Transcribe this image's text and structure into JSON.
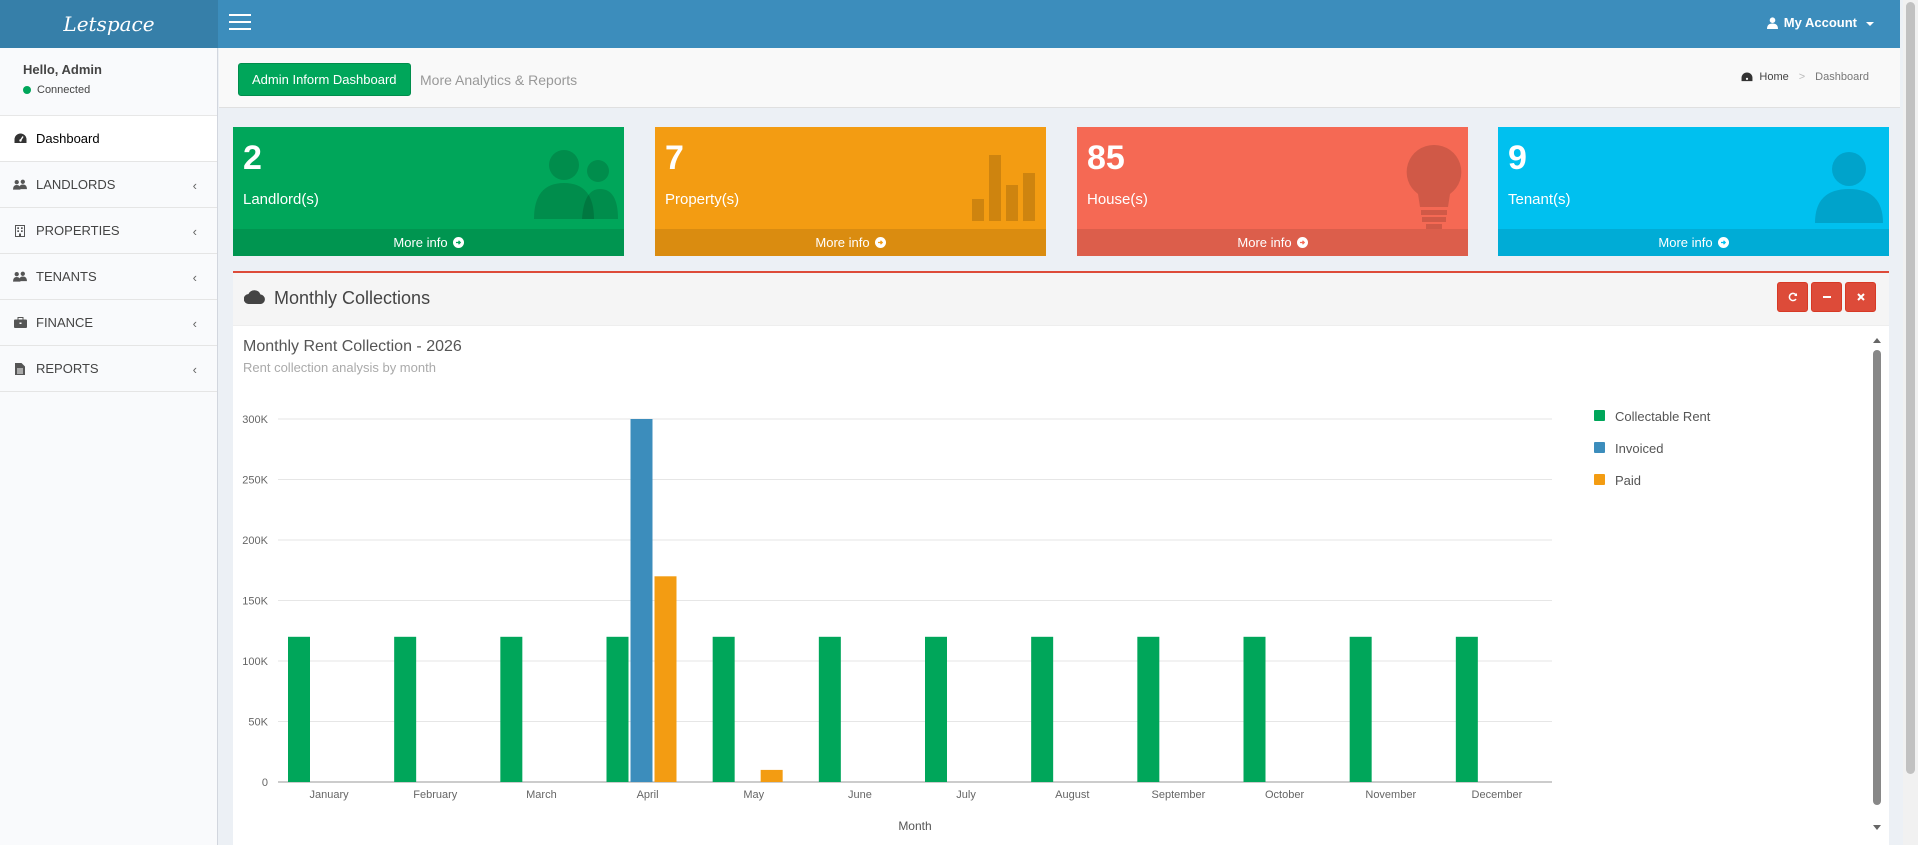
{
  "app": {
    "logo": "Letspace"
  },
  "topbar": {
    "account_label": "My Account"
  },
  "sidebar": {
    "greeting": "Hello, Admin",
    "status": "Connected",
    "items": [
      {
        "label": "Dashboard",
        "icon": "dashboard-icon"
      },
      {
        "label": "LANDLORDS",
        "icon": "users-icon"
      },
      {
        "label": "PROPERTIES",
        "icon": "building-icon"
      },
      {
        "label": "TENANTS",
        "icon": "users-icon"
      },
      {
        "label": "FINANCE",
        "icon": "briefcase-icon"
      },
      {
        "label": "REPORTS",
        "icon": "file-icon"
      }
    ]
  },
  "header": {
    "dashboard_button": "Admin Inform Dashboard",
    "more_link": "More Analytics & Reports",
    "breadcrumb_home": "Home",
    "breadcrumb_current": "Dashboard"
  },
  "stats": [
    {
      "value": "2",
      "label": "Landlord(s)",
      "more": "More info",
      "color": "#00a65a"
    },
    {
      "value": "7",
      "label": "Property(s)",
      "more": "More info",
      "color": "#f39c12"
    },
    {
      "value": "85",
      "label": "House(s)",
      "more": "More info",
      "color": "#f56954"
    },
    {
      "value": "9",
      "label": "Tenant(s)",
      "more": "More info",
      "color": "#00c0ef"
    }
  ],
  "panel": {
    "title": "Monthly Collections"
  },
  "chart_data": {
    "type": "bar",
    "title": "Monthly Rent Collection - 2026",
    "subtitle": "Rent collection analysis by month",
    "xlabel": "Month",
    "ylabel": "",
    "ylim": [
      0,
      300000
    ],
    "yticks": [
      "0",
      "50K",
      "100K",
      "150K",
      "200K",
      "250K",
      "300K"
    ],
    "categories": [
      "January",
      "February",
      "March",
      "April",
      "May",
      "June",
      "July",
      "August",
      "September",
      "October",
      "November",
      "December"
    ],
    "series": [
      {
        "name": "Collectable Rent",
        "color": "#00a65a",
        "values": [
          120000,
          120000,
          120000,
          120000,
          120000,
          120000,
          120000,
          120000,
          120000,
          120000,
          120000,
          120000
        ]
      },
      {
        "name": "Invoiced",
        "color": "#3c8dbc",
        "values": [
          0,
          0,
          0,
          300000,
          0,
          0,
          0,
          0,
          0,
          0,
          0,
          0
        ]
      },
      {
        "name": "Paid",
        "color": "#f39c12",
        "values": [
          0,
          0,
          0,
          170000,
          10000,
          0,
          0,
          0,
          0,
          0,
          0,
          0
        ]
      }
    ],
    "grid": true,
    "legend_position": "right"
  }
}
